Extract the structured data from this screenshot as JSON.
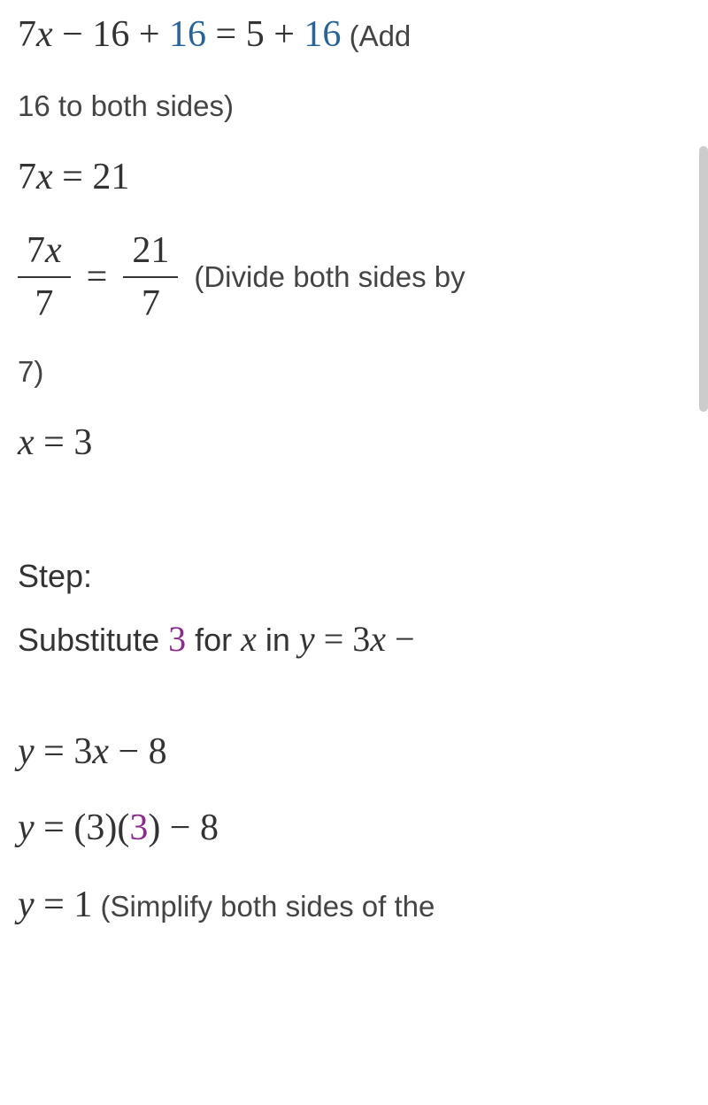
{
  "colors": {
    "text": "#333333",
    "highlight_blue": "#2a6496",
    "highlight_purple": "#8b2d8b",
    "background": "#ffffff",
    "scrollbar_track": "#f0f0f0",
    "scrollbar_thumb": "#cccccc"
  },
  "typography": {
    "math_fontsize": 42,
    "annotation_fontsize": 33,
    "heading_fontsize": 36,
    "math_family": "Georgia serif",
    "text_family": "Arial sans-serif"
  },
  "line1": {
    "p1": "7",
    "p2": "x",
    "p3": " − 16 + ",
    "p4": "16",
    "p5": " = 5 + ",
    "p6": "16",
    "ann": "  (Add"
  },
  "line2": {
    "ann": "16 to both sides)"
  },
  "line3": {
    "p1": "7",
    "p2": "x",
    "p3": " = 21"
  },
  "frac_row": {
    "f1_num_a": "7",
    "f1_num_b": "x",
    "f1_den": "7",
    "eq": "=",
    "f2_num": "21",
    "f2_den": "7",
    "ann": "(Divide both sides by"
  },
  "line5": {
    "ann": "7)"
  },
  "line6": {
    "p1": "x",
    "p2": " = 3"
  },
  "step_heading": "Step:",
  "sub_line": {
    "t1": "Substitute ",
    "v1": "3",
    "t2": " for ",
    "v2": "x",
    "t3": " in ",
    "v3": "y",
    "t4": " = 3",
    "v4": "x",
    "t5": " −"
  },
  "eq1": {
    "p1": "y",
    "p2": " = 3",
    "p3": "x",
    "p4": " − 8"
  },
  "eq2": {
    "p1": "y",
    "p2": " = (3)(",
    "p3": "3",
    "p4": ") − 8"
  },
  "eq3": {
    "p1": "y",
    "p2": " = 1",
    "ann": "  (Simplify both sides of the"
  }
}
